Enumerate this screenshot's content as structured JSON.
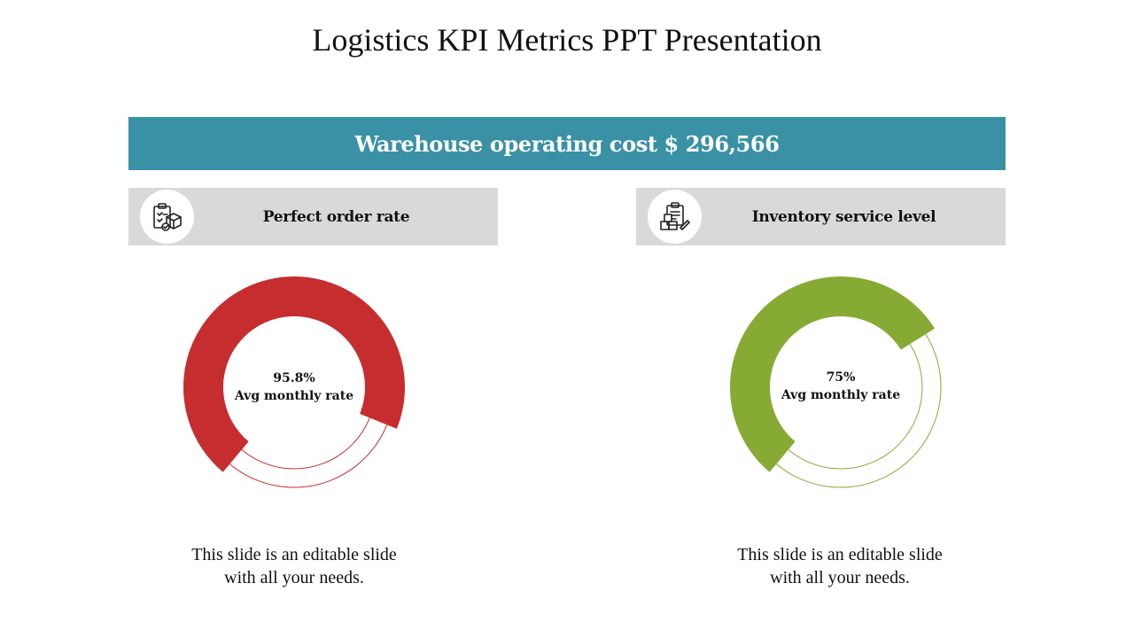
{
  "slide": {
    "title": "Logistics KPI Metrics PPT Presentation",
    "banner_text": "Warehouse operating cost $ 296,566"
  },
  "cards": [
    {
      "label": "Perfect order rate",
      "icon": "clipboard-box-check-icon",
      "value_text": "95.8%",
      "value_label": "Avg monthly rate",
      "fill_fraction": 0.7,
      "color": "#c62d2f",
      "caption_line1": "This slide is an editable slide",
      "caption_line2": "with all your needs."
    },
    {
      "label": "Inventory service level",
      "icon": "clipboard-inventory-boxes-icon",
      "value_text": "75%",
      "value_label": "Avg monthly rate",
      "fill_fraction": 0.55,
      "color": "#86aa33",
      "caption_line1": "This slide is an editable slide",
      "caption_line2": "with all your needs."
    }
  ]
}
